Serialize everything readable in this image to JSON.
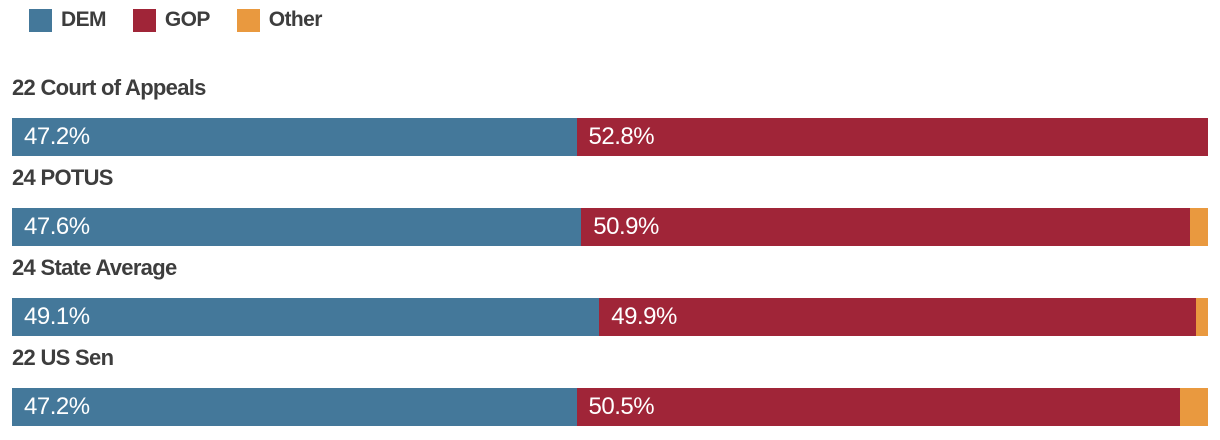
{
  "colors": {
    "dem": "#44789a",
    "gop": "#a02538",
    "other": "#e9993f",
    "heading_text": "#3d3d3d",
    "bar_label_text": "#ffffff",
    "background": "#ffffff"
  },
  "legend": {
    "items": [
      {
        "label": "DEM",
        "color": "#44789a"
      },
      {
        "label": "GOP",
        "color": "#a02538"
      },
      {
        "label": "Other",
        "color": "#e9993f"
      }
    ]
  },
  "chart_data": {
    "type": "bar",
    "orientation": "horizontal",
    "stacked": true,
    "categories": [
      "22 Court of Appeals",
      "24 POTUS",
      "24 State Average",
      "22 US Sen"
    ],
    "series": [
      {
        "name": "DEM",
        "color": "#44789a",
        "values": [
          47.2,
          47.6,
          49.1,
          47.2
        ]
      },
      {
        "name": "GOP",
        "color": "#a02538",
        "values": [
          52.8,
          50.9,
          49.9,
          50.5
        ]
      },
      {
        "name": "Other",
        "color": "#e9993f",
        "values": [
          0,
          1.5,
          1.0,
          2.3
        ]
      }
    ],
    "value_labels": {
      "DEM": [
        "47.2%",
        "47.6%",
        "49.1%",
        "47.2%"
      ],
      "GOP": [
        "52.8%",
        "50.9%",
        "49.9%",
        "50.5%"
      ],
      "Other": [
        "",
        "",
        "",
        ""
      ]
    },
    "xlim": [
      0,
      100
    ],
    "grid": false,
    "legend_position": "top-left",
    "title": "",
    "xlabel": "",
    "ylabel": ""
  },
  "rows": [
    {
      "heading": "22 Court of Appeals",
      "dem_label": "47.2%",
      "gop_label": "52.8%",
      "other_label": ""
    },
    {
      "heading": "24 POTUS",
      "dem_label": "47.6%",
      "gop_label": "50.9%",
      "other_label": ""
    },
    {
      "heading": "24 State Average",
      "dem_label": "49.1%",
      "gop_label": "49.9%",
      "other_label": ""
    },
    {
      "heading": "22 US Sen",
      "dem_label": "47.2%",
      "gop_label": "50.5%",
      "other_label": ""
    }
  ]
}
